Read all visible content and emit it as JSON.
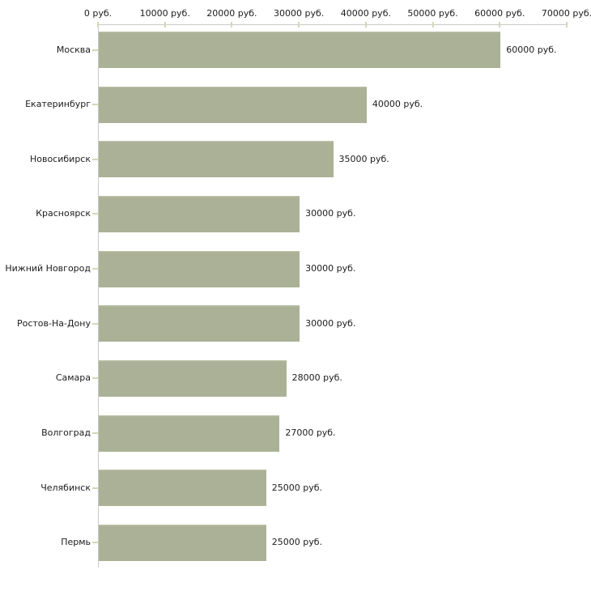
{
  "chart_data": {
    "type": "bar",
    "orientation": "horizontal",
    "title": "",
    "categories": [
      "Москва",
      "Екатеринбург",
      "Новосибирск",
      "Красноярск",
      "Нижний Новгород",
      "Ростов-На-Дону",
      "Самара",
      "Волгоград",
      "Челябинск",
      "Пермь"
    ],
    "values": [
      60000,
      40000,
      35000,
      30000,
      30000,
      30000,
      28000,
      27000,
      25000,
      25000
    ],
    "value_labels": [
      "60000 руб.",
      "40000 руб.",
      "35000 руб.",
      "30000 руб.",
      "30000 руб.",
      "30000 руб.",
      "28000 руб.",
      "27000 руб.",
      "25000 руб.",
      "25000 руб."
    ],
    "unit": "руб.",
    "x_axis": {
      "position": "top",
      "min": 0,
      "max": 70000,
      "tick_step": 10000,
      "tick_values": [
        0,
        10000,
        20000,
        30000,
        40000,
        50000,
        60000,
        70000
      ],
      "tick_labels": [
        "0 руб.",
        "10000 руб.",
        "20000 руб.",
        "30000 руб.",
        "40000 руб.",
        "50000 руб.",
        "60000 руб.",
        "70000 руб."
      ]
    },
    "grid": false,
    "legend": false,
    "colors": {
      "bar_fill": "#abb196",
      "bar_top_highlight": "#c2c6ac",
      "axis_line": "#c9c9c9",
      "tick_mark": "#d6d6b8",
      "text": "#1c1c1c",
      "background": "#ffffff"
    }
  }
}
